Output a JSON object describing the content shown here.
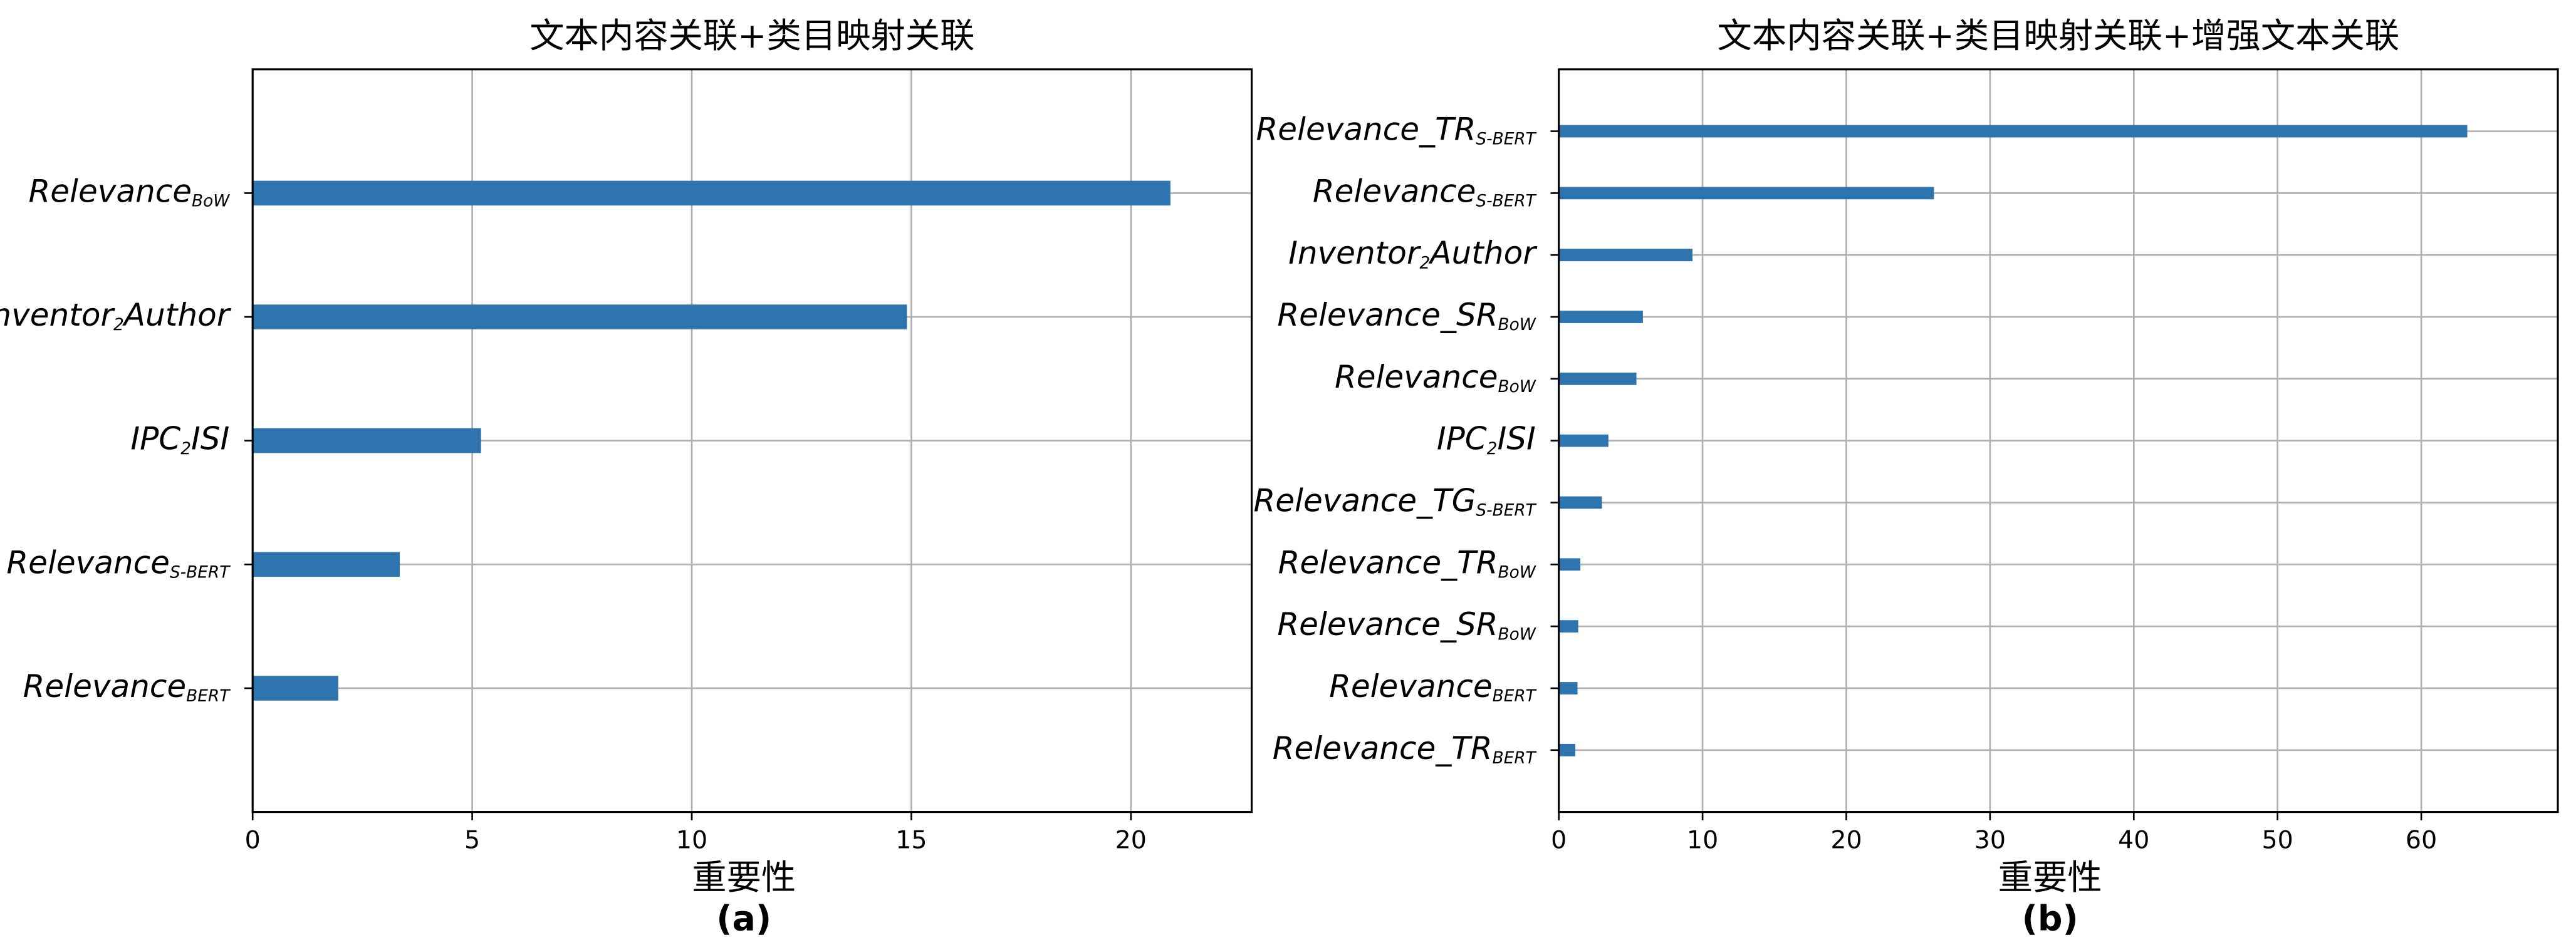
{
  "chart_data": [
    {
      "type": "barh",
      "title": "文本内容关联+类目映射关联",
      "xlabel": "重要性",
      "caption": "(a)",
      "categories": [
        {
          "text": "Relevance",
          "sub": "BoW"
        },
        {
          "text": "Inventor",
          "sub": "2",
          "after": "Author"
        },
        {
          "text": "IPC",
          "sub": "2",
          "after": "ISI"
        },
        {
          "text": "Relevance",
          "sub": "S-BERT"
        },
        {
          "text": "Relevance",
          "sub": "BERT"
        }
      ],
      "values": [
        20.9,
        14.9,
        5.2,
        3.35,
        1.95
      ],
      "color": "#2e75b0",
      "xlim": [
        0,
        22.75
      ],
      "xticks": [
        0,
        5,
        10,
        15,
        20
      ],
      "grid": true
    },
    {
      "type": "barh",
      "title": "文本内容关联+类目映射关联+增强文本关联",
      "xlabel": "重要性",
      "caption": "(b)",
      "categories": [
        {
          "text": "Relevance_TR",
          "sub": "S-BERT"
        },
        {
          "text": "Relevance",
          "sub": "S-BERT"
        },
        {
          "text": "Inventor",
          "sub": "2",
          "after": "Author"
        },
        {
          "text": "Relevance_SR",
          "sub": "BoW"
        },
        {
          "text": "Relevance",
          "sub": "BoW"
        },
        {
          "text": "IPC",
          "sub": "2",
          "after": "ISI"
        },
        {
          "text": "Relevance_TG",
          "sub": "S-BERT"
        },
        {
          "text": "Relevance_TR",
          "sub": "BoW"
        },
        {
          "text": "Relevance_SR",
          "sub": "BoW"
        },
        {
          "text": "Relevance",
          "sub": "BERT"
        },
        {
          "text": "Relevance_TR",
          "sub": "BERT"
        }
      ],
      "values": [
        63.2,
        26.1,
        9.3,
        5.85,
        5.4,
        3.45,
        3.0,
        1.5,
        1.35,
        1.3,
        1.15
      ],
      "color": "#2e75b0",
      "xlim": [
        0,
        69.5
      ],
      "xticks": [
        0,
        10,
        20,
        30,
        40,
        50,
        60
      ],
      "grid": true
    }
  ]
}
